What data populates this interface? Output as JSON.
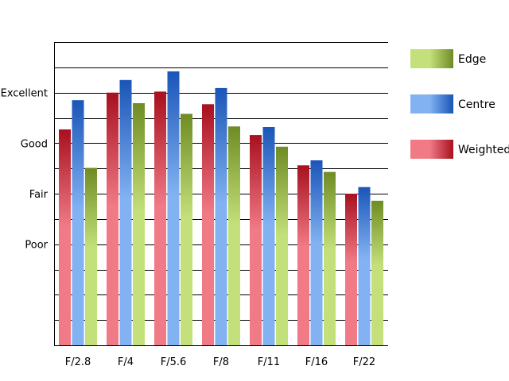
{
  "chart_data": {
    "type": "bar",
    "categories": [
      "F/2.8",
      "F/4",
      "F/5.6",
      "F/8",
      "F/11",
      "F/16",
      "F/22"
    ],
    "series": [
      {
        "name": "Weighted",
        "values": [
          3.27,
          4.0,
          4.02,
          3.77,
          3.16,
          2.56,
          2.0
        ],
        "colors": [
          "#f07a86",
          "#a8101e"
        ]
      },
      {
        "name": "Centre",
        "values": [
          3.85,
          4.25,
          4.42,
          4.09,
          3.32,
          2.66,
          2.13
        ],
        "colors": [
          "#82b2f2",
          "#1a55b8"
        ]
      },
      {
        "name": "Edge",
        "values": [
          2.51,
          3.79,
          3.58,
          3.33,
          2.93,
          2.43,
          1.86
        ],
        "colors": [
          "#c4e07a",
          "#6f8c24"
        ]
      }
    ],
    "y_ticks": [
      {
        "value": 1,
        "label": "Poor"
      },
      {
        "value": 2,
        "label": "Fair"
      },
      {
        "value": 3,
        "label": "Good"
      },
      {
        "value": 4,
        "label": "Excellent"
      }
    ],
    "ylim": [
      -1,
      5
    ],
    "grid_step": 0.5,
    "grid": true,
    "legend_order": [
      "Edge",
      "Centre",
      "Weighted"
    ],
    "legend_position": "right"
  }
}
